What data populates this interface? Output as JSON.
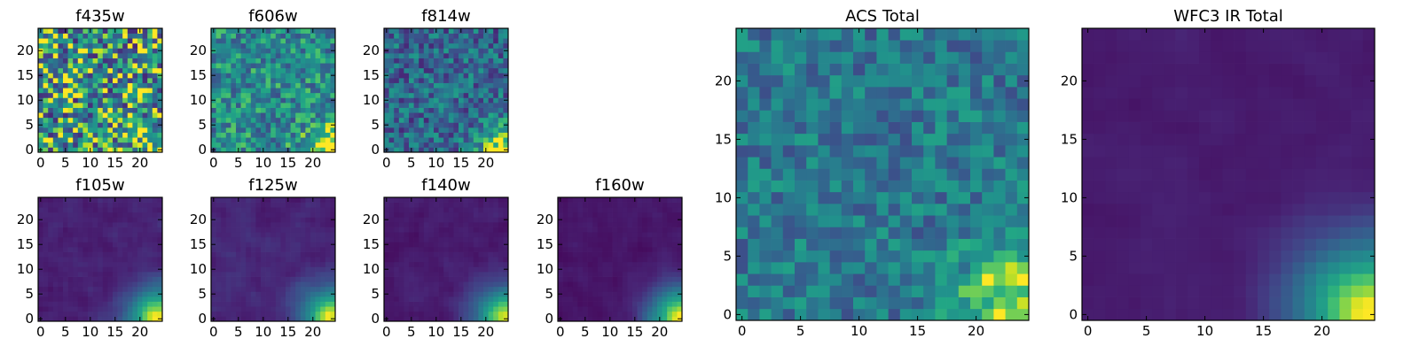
{
  "chart_data": {
    "type": "heatmap",
    "colormap": "viridis",
    "panels": [
      {
        "title": "f435w",
        "grid": 25,
        "xticks": [
          "0",
          "5",
          "10",
          "15",
          "20"
        ],
        "yticks": [
          "0",
          "5",
          "10",
          "15",
          "20"
        ],
        "pattern": "acs",
        "noise": 0.95,
        "base": 0.62,
        "gain": 0.18,
        "seed": 11
      },
      {
        "title": "f606w",
        "grid": 25,
        "xticks": [
          "0",
          "5",
          "10",
          "15",
          "20"
        ],
        "yticks": [
          "0",
          "5",
          "10",
          "15",
          "20"
        ],
        "pattern": "acs",
        "noise": 0.55,
        "base": 0.58,
        "gain": 0.42,
        "seed": 23
      },
      {
        "title": "f814w",
        "grid": 25,
        "xticks": [
          "0",
          "5",
          "10",
          "15",
          "20"
        ],
        "yticks": [
          "0",
          "5",
          "10",
          "15",
          "20"
        ],
        "pattern": "acs",
        "noise": 0.55,
        "base": 0.42,
        "gain": 0.6,
        "seed": 37
      },
      {
        "title": "f105w",
        "grid": 25,
        "xticks": [
          "0",
          "5",
          "10",
          "15",
          "20"
        ],
        "yticks": [
          "0",
          "5",
          "10",
          "15",
          "20"
        ],
        "pattern": "ir",
        "noise": 0.14,
        "base": 0.12,
        "gain": 0.9,
        "seed": 41
      },
      {
        "title": "f125w",
        "grid": 25,
        "xticks": [
          "0",
          "5",
          "10",
          "15",
          "20"
        ],
        "yticks": [
          "0",
          "5",
          "10",
          "15",
          "20"
        ],
        "pattern": "ir",
        "noise": 0.14,
        "base": 0.14,
        "gain": 0.9,
        "seed": 53
      },
      {
        "title": "f140w",
        "grid": 25,
        "xticks": [
          "0",
          "5",
          "10",
          "15",
          "20"
        ],
        "yticks": [
          "0",
          "5",
          "10",
          "15",
          "20"
        ],
        "pattern": "ir",
        "noise": 0.12,
        "base": 0.1,
        "gain": 0.9,
        "seed": 67
      },
      {
        "title": "f160w",
        "grid": 25,
        "xticks": [
          "0",
          "5",
          "10",
          "15",
          "20"
        ],
        "yticks": [
          "0",
          "5",
          "10",
          "15",
          "20"
        ],
        "pattern": "ir",
        "noise": 0.1,
        "base": 0.08,
        "gain": 0.92,
        "seed": 79
      },
      {
        "title": "ACS Total",
        "grid": 25,
        "xticks": [
          "0",
          "5",
          "10",
          "15",
          "20"
        ],
        "yticks": [
          "0",
          "5",
          "10",
          "15",
          "20"
        ],
        "pattern": "acs",
        "noise": 0.42,
        "base": 0.5,
        "gain": 0.55,
        "seed": 97
      },
      {
        "title": "WFC3 IR Total",
        "grid": 25,
        "xticks": [
          "0",
          "5",
          "10",
          "15",
          "20"
        ],
        "yticks": [
          "0",
          "5",
          "10",
          "15",
          "20"
        ],
        "pattern": "ir",
        "noise": 0.07,
        "base": 0.1,
        "gain": 0.92,
        "seed": 101
      }
    ]
  }
}
